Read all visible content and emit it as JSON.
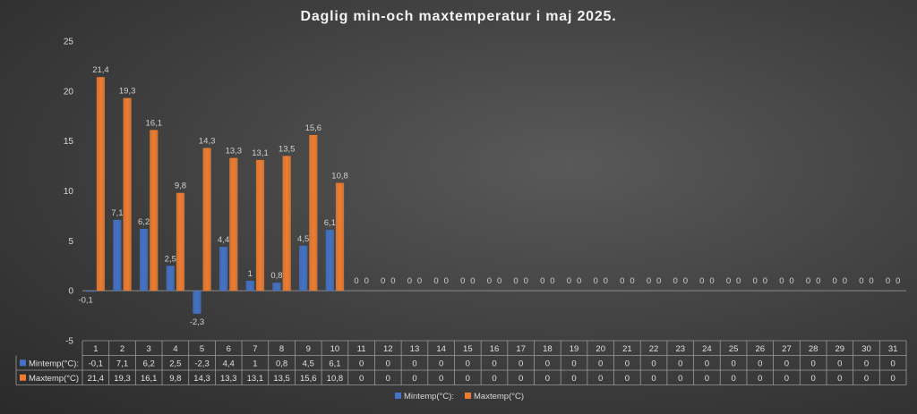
{
  "chart_data": {
    "type": "bar",
    "title": "Daglig min-och maxtemperatur i maj 2025.",
    "xlabel": "",
    "ylabel": "",
    "ylim": [
      -5,
      25
    ],
    "yticks": [
      -5,
      0,
      5,
      10,
      15,
      20,
      25
    ],
    "categories": [
      "1",
      "2",
      "3",
      "4",
      "5",
      "6",
      "7",
      "8",
      "9",
      "10",
      "11",
      "12",
      "13",
      "14",
      "15",
      "16",
      "17",
      "18",
      "19",
      "20",
      "21",
      "22",
      "23",
      "24",
      "25",
      "26",
      "27",
      "28",
      "29",
      "30",
      "31"
    ],
    "series": [
      {
        "name": "Mintemp(°C):",
        "color": "#4472c4",
        "values": [
          -0.1,
          7.1,
          6.2,
          2.5,
          -2.3,
          4.4,
          1,
          0.8,
          4.5,
          6.1,
          0,
          0,
          0,
          0,
          0,
          0,
          0,
          0,
          0,
          0,
          0,
          0,
          0,
          0,
          0,
          0,
          0,
          0,
          0,
          0,
          0
        ],
        "labels": [
          "-0,1",
          "7,1",
          "6,2",
          "2,5",
          "-2,3",
          "4,4",
          "1",
          "0,8",
          "4,5",
          "6,1",
          "0",
          "0",
          "0",
          "0",
          "0",
          "0",
          "0",
          "0",
          "0",
          "0",
          "0",
          "0",
          "0",
          "0",
          "0",
          "0",
          "0",
          "0",
          "0",
          "0",
          "0"
        ]
      },
      {
        "name": "Maxtemp(°C)",
        "color": "#ed7d31",
        "values": [
          21.4,
          19.3,
          16.1,
          9.8,
          14.3,
          13.3,
          13.1,
          13.5,
          15.6,
          10.8,
          0,
          0,
          0,
          0,
          0,
          0,
          0,
          0,
          0,
          0,
          0,
          0,
          0,
          0,
          0,
          0,
          0,
          0,
          0,
          0,
          0
        ],
        "labels": [
          "21,4",
          "19,3",
          "16,1",
          "9,8",
          "14,3",
          "13,3",
          "13,1",
          "13,5",
          "15,6",
          "10,8",
          "0",
          "0",
          "0",
          "0",
          "0",
          "0",
          "0",
          "0",
          "0",
          "0",
          "0",
          "0",
          "0",
          "0",
          "0",
          "0",
          "0",
          "0",
          "0",
          "0",
          "0"
        ]
      }
    ],
    "data_table": true,
    "legend_position": "bottom",
    "grid": false
  }
}
